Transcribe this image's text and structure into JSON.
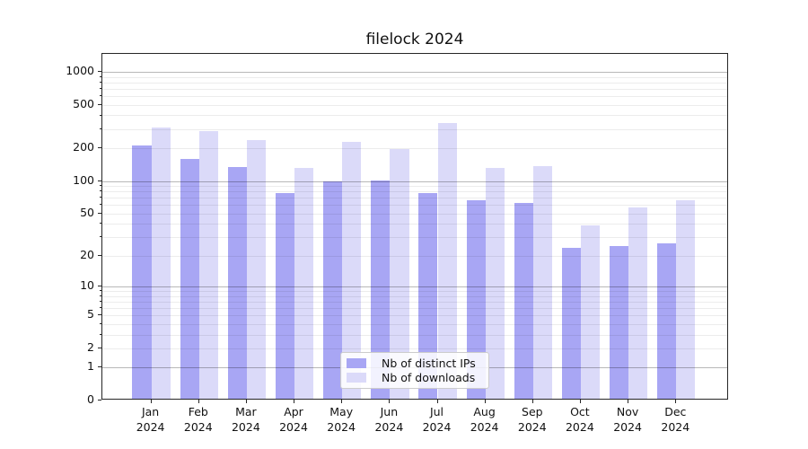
{
  "chart_data": {
    "type": "bar",
    "title": "filelock 2024",
    "categories": [
      "Jan 2024",
      "Feb 2024",
      "Mar 2024",
      "Apr 2024",
      "May 2024",
      "Jun 2024",
      "Jul 2024",
      "Aug 2024",
      "Sep 2024",
      "Oct 2024",
      "Nov 2024",
      "Dec 2024"
    ],
    "series": [
      {
        "name": "Nb of distinct IPs",
        "color": "#a8a6f4",
        "values": [
          205,
          155,
          130,
          75,
          95,
          98,
          74,
          64,
          60,
          23,
          24,
          25
        ]
      },
      {
        "name": "Nb of downloads",
        "color": "#dbdaf9",
        "values": [
          301,
          275,
          229,
          127,
          222,
          190,
          328,
          127,
          131,
          37,
          55,
          64
        ]
      }
    ],
    "yscale": "log1p",
    "ylim": [
      0,
      1460
    ],
    "yticks": [
      0,
      1,
      2,
      5,
      10,
      20,
      50,
      100,
      200,
      500,
      1000
    ],
    "major_gridlines": [
      1,
      10,
      100,
      1000
    ],
    "minor_gridlines": [
      2,
      3,
      4,
      5,
      6,
      7,
      8,
      9,
      20,
      30,
      40,
      50,
      60,
      70,
      80,
      90,
      200,
      300,
      400,
      500,
      600,
      700,
      800,
      900
    ],
    "grid": true,
    "legend_position": "lower center",
    "axis_color": "#262626",
    "xlabel": "",
    "ylabel": ""
  }
}
